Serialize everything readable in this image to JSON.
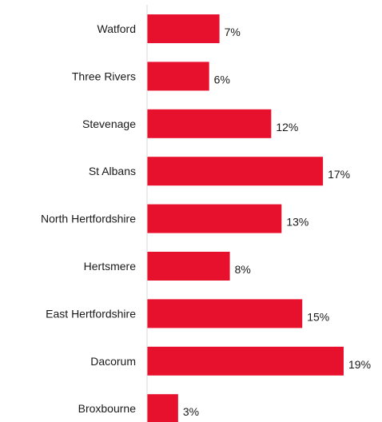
{
  "chart_data": {
    "type": "bar",
    "orientation": "horizontal",
    "title": "",
    "xlabel": "",
    "ylabel": "",
    "categories": [
      "Watford",
      "Three Rivers",
      "Stevenage",
      "St Albans",
      "North Hertfordshire",
      "Hertsmere",
      "East Hertfordshire",
      "Dacorum",
      "Broxbourne"
    ],
    "values": [
      7,
      6,
      12,
      17,
      13,
      8,
      15,
      19,
      3
    ],
    "value_labels": [
      "7%",
      "6%",
      "12%",
      "17%",
      "13%",
      "8%",
      "15%",
      "19%",
      "3%"
    ],
    "xlim": [
      0,
      19
    ],
    "bar_color": "#e8112d",
    "axis_color": "#d9d9d9",
    "grid": false,
    "legend": "none"
  }
}
